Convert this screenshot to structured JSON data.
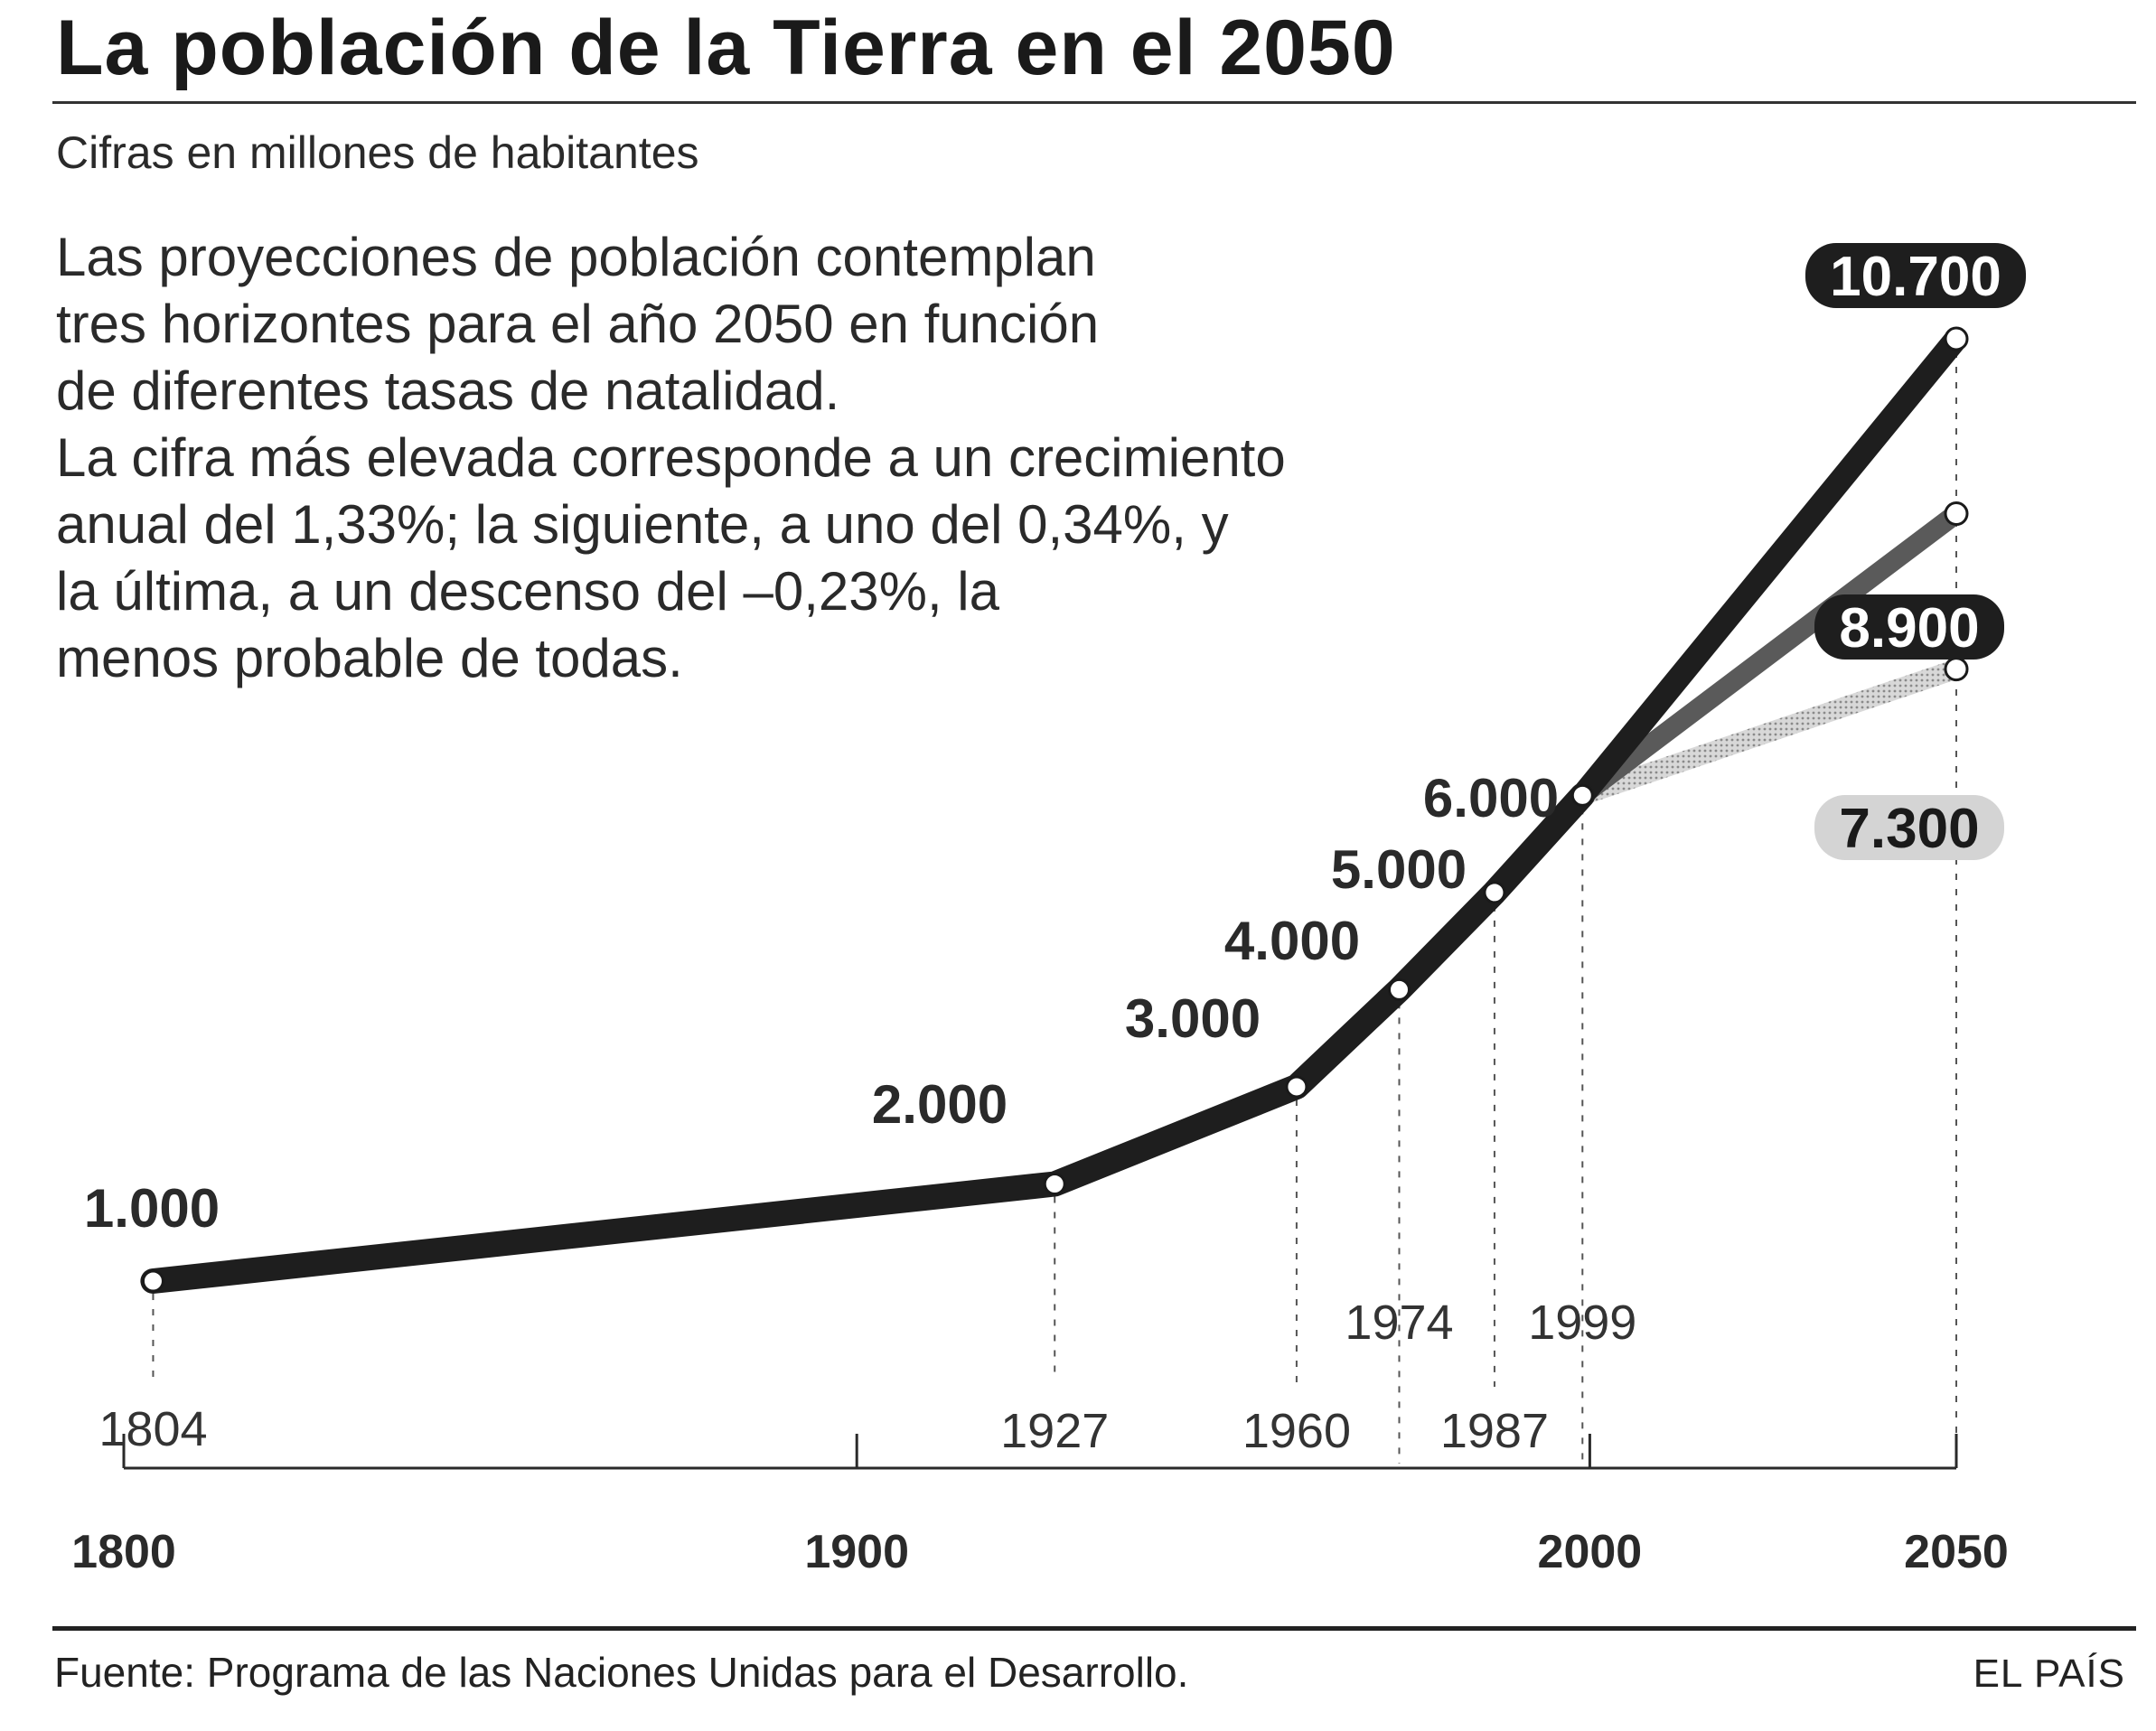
{
  "header": {
    "title": "La población de la Tierra en el 2050",
    "subtitle": "Cifras en millones de habitantes"
  },
  "description": [
    "Las proyecciones de población contemplan",
    "tres horizontes para el año 2050 en función",
    "de diferentes tasas de natalidad.",
    "La cifra más elevada corresponde a un crecimiento",
    "anual del 1,33%; la siguiente, a uno del 0,34%, y",
    "la última, a un descenso del –0,23%, la",
    "menos probable de todas."
  ],
  "footer": {
    "source": "Fuente: Programa de las Naciones Unidas para el Desarrollo.",
    "brand": "EL PAÍS"
  },
  "colors": {
    "main_line": "#1e1e1e",
    "projection_mid": "#5a5a5a",
    "projection_low": "#b8b8b8",
    "pill_dark": "#1e1e1e",
    "pill_light": "#d4d4d4"
  },
  "chart_data": {
    "type": "line",
    "xlim": [
      1800,
      2050
    ],
    "ylim": [
      1000,
      10700
    ],
    "x_ticks": [
      1800,
      1900,
      2000,
      2050
    ],
    "historical": {
      "points": [
        {
          "year": 1804,
          "population": 1000,
          "year_label": "1804",
          "value_label": "1.000"
        },
        {
          "year": 1927,
          "population": 2000,
          "year_label": "1927",
          "value_label": "2.000"
        },
        {
          "year": 1960,
          "population": 3000,
          "year_label": "1960",
          "value_label": "3.000"
        },
        {
          "year": 1974,
          "population": 4000,
          "year_label": "1974",
          "value_label": "4.000"
        },
        {
          "year": 1987,
          "population": 5000,
          "year_label": "1987",
          "value_label": "5.000"
        },
        {
          "year": 1999,
          "population": 6000,
          "year_label": "1999",
          "value_label": "6.000"
        }
      ]
    },
    "projections": [
      {
        "from_year": 1999,
        "from_population": 6000,
        "year": 2050,
        "population": 10700,
        "value_label": "10.700",
        "style": "dark"
      },
      {
        "from_year": 1999,
        "from_population": 6000,
        "year": 2050,
        "population": 8900,
        "value_label": "8.900",
        "style": "mid"
      },
      {
        "from_year": 1999,
        "from_population": 6000,
        "year": 2050,
        "population": 7300,
        "value_label": "7.300",
        "style": "light"
      }
    ]
  }
}
